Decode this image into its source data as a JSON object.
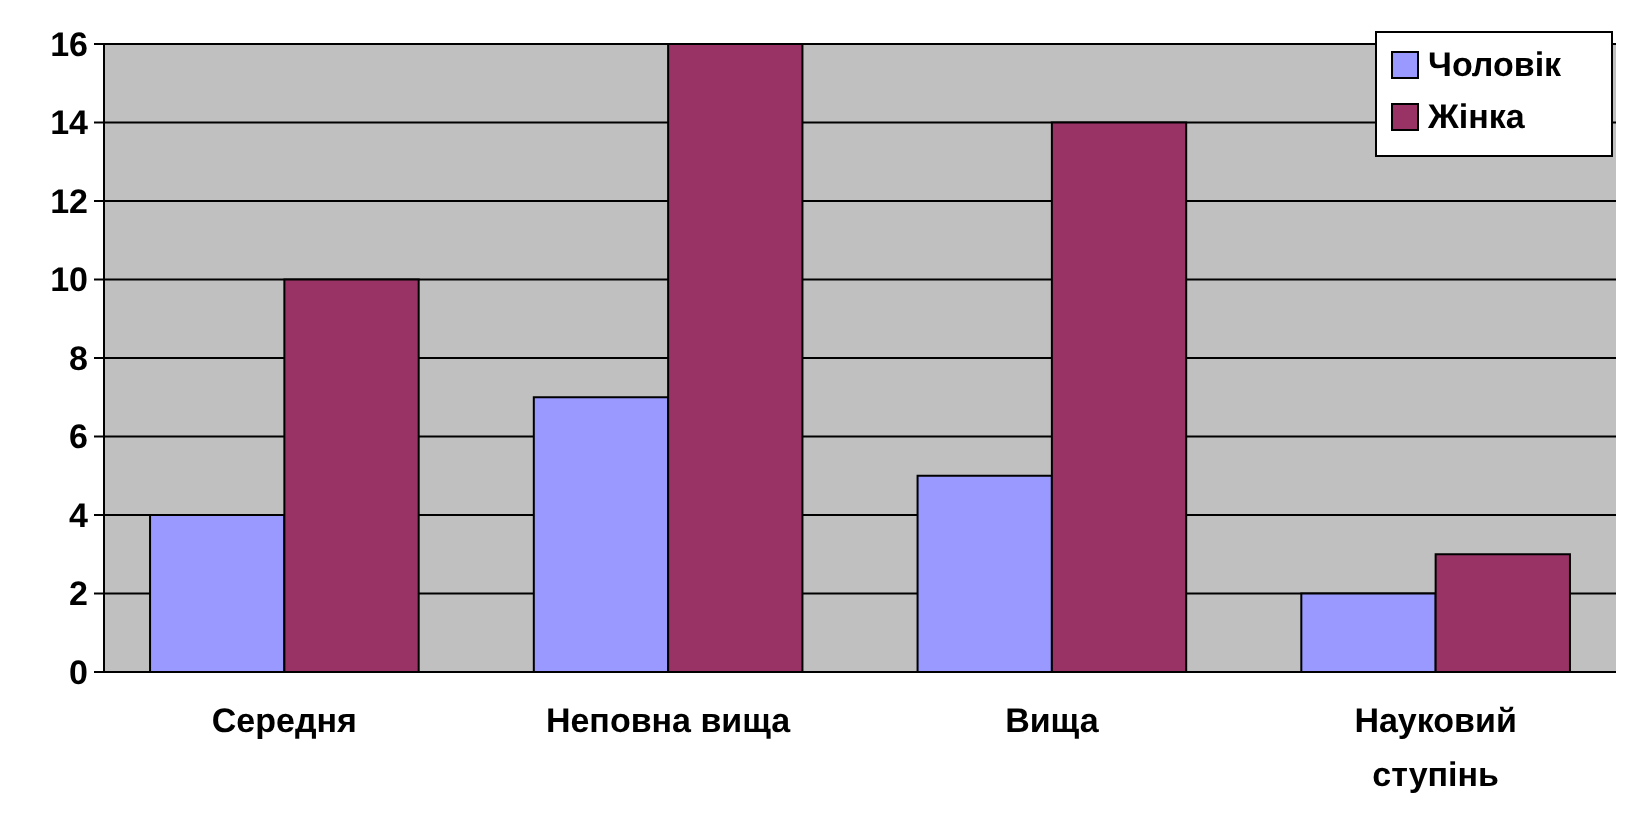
{
  "chart_data": {
    "type": "bar",
    "categories": [
      "Середня",
      "Неповна вища",
      "Вища",
      "Науковий ступінь"
    ],
    "series": [
      {
        "name": "Чоловік",
        "color": "#9999ff",
        "values": [
          4,
          7,
          5,
          2
        ]
      },
      {
        "name": "Жінка",
        "color": "#993366",
        "values": [
          10,
          16,
          14,
          3
        ]
      }
    ],
    "ylim": [
      0,
      16
    ],
    "yticks": [
      0,
      2,
      4,
      6,
      8,
      10,
      12,
      14,
      16
    ],
    "grid": "y",
    "legend": "top right"
  }
}
